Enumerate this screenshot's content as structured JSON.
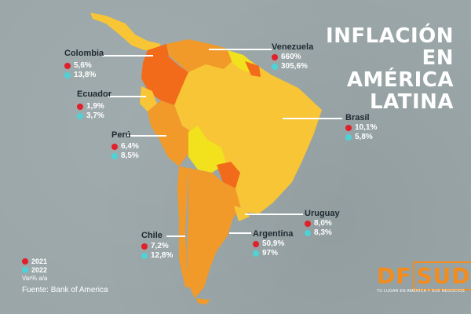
{
  "title": "INFLACIÓN EN AMÉRICA LATINA",
  "colors": {
    "background": "#9aa6a8",
    "dot_2021": "#e0202a",
    "dot_2022": "#4fd2d6",
    "map_yellow": "#f7c535",
    "map_orange": "#f19a2a",
    "map_deep_orange": "#f26b1b",
    "map_pale_yellow": "#f2e21e"
  },
  "countries": [
    {
      "key": "colombia",
      "name": "Colombia",
      "v2021": "5,6%",
      "v2022": "13,8%"
    },
    {
      "key": "venezuela",
      "name": "Venezuela",
      "v2021": "660%",
      "v2022": "305,6%"
    },
    {
      "key": "ecuador",
      "name": "Ecuador",
      "v2021": "1,9%",
      "v2022": "3,7%"
    },
    {
      "key": "brasil",
      "name": "Brasil",
      "v2021": "10,1%",
      "v2022": "5,8%"
    },
    {
      "key": "peru",
      "name": "Perú",
      "v2021": "6,4%",
      "v2022": "8,5%"
    },
    {
      "key": "uruguay",
      "name": "Uruguay",
      "v2021": "8,0%",
      "v2022": "8,3%"
    },
    {
      "key": "chile",
      "name": "Chile",
      "v2021": "7,2%",
      "v2022": "12,8%"
    },
    {
      "key": "argentina",
      "name": "Argentina",
      "v2021": "50,9%",
      "v2022": "97%"
    }
  ],
  "legend": {
    "y2021": "2021",
    "y2022": "2022",
    "unit": "Var% a/a"
  },
  "source": "Fuente: Bank of America",
  "logo": {
    "df": "DF",
    "sud": "SUD",
    "tagline": "TU LUGAR EN AMÉRICA Y SUS NEGOCIOS"
  }
}
